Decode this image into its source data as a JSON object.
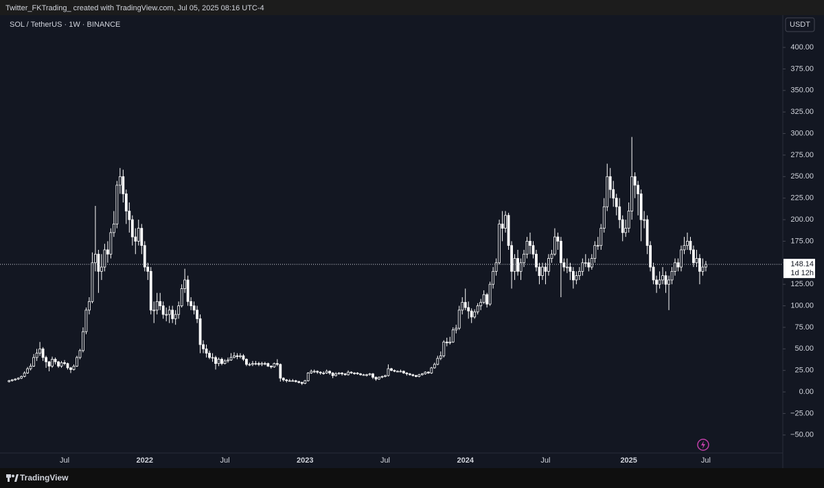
{
  "chart_data": {
    "type": "candlestick",
    "header": "Twitter_FKTrading_ created with TradingView.com, Jul 05, 2025 08:16 UTC-4",
    "title": "SOL / TetherUS · 1W · BINANCE",
    "currency": "USDT",
    "countdown": "1d 12h",
    "brand": "TradingView",
    "up_color": "#ffffff",
    "down_color": "#ffffff",
    "grid": false,
    "ylim": [
      -88.4,
      435.9
    ],
    "yticks": [
      {
        "value": -50,
        "label": "−50.00"
      },
      {
        "value": -25,
        "label": "−25.00"
      },
      {
        "value": 0,
        "label": "0.00"
      },
      {
        "value": 25,
        "label": "25.00"
      },
      {
        "value": 50,
        "label": "50.00"
      },
      {
        "value": 75,
        "label": "75.00"
      },
      {
        "value": 100,
        "label": "100.00"
      },
      {
        "value": 125,
        "label": "125.00"
      },
      {
        "value": 150,
        "label": "150.00"
      },
      {
        "value": 175,
        "label": "175.00"
      },
      {
        "value": 200,
        "label": "200.00"
      },
      {
        "value": 225,
        "label": "225.00"
      },
      {
        "value": 250,
        "label": "250.00"
      },
      {
        "value": 275,
        "label": "275.00"
      },
      {
        "value": 300,
        "label": "300.00"
      },
      {
        "value": 325,
        "label": "325.00"
      },
      {
        "value": 350,
        "label": "350.00"
      },
      {
        "value": 375,
        "label": "375.00"
      },
      {
        "value": 400,
        "label": "400.00"
      }
    ],
    "categories": [
      null,
      null,
      null,
      null,
      null,
      null,
      null,
      null,
      null,
      null,
      null,
      null,
      null,
      null,
      null,
      null,
      null,
      null,
      "Jul",
      null,
      null,
      null,
      null,
      null,
      null,
      null,
      null,
      null,
      null,
      null,
      null,
      null,
      null,
      null,
      null,
      null,
      null,
      null,
      null,
      null,
      null,
      null,
      null,
      null,
      "2022",
      null,
      null,
      null,
      null,
      null,
      null,
      null,
      null,
      null,
      null,
      null,
      null,
      null,
      null,
      null,
      null,
      null,
      null,
      null,
      null,
      null,
      null,
      null,
      null,
      null,
      "Jul",
      null,
      null,
      null,
      null,
      null,
      null,
      null,
      null,
      null,
      null,
      null,
      null,
      null,
      null,
      null,
      null,
      null,
      null,
      null,
      null,
      null,
      null,
      null,
      null,
      null,
      "2023",
      null,
      null,
      null,
      null,
      null,
      null,
      null,
      null,
      null,
      null,
      null,
      null,
      null,
      null,
      null,
      null,
      null,
      null,
      null,
      null,
      null,
      null,
      null,
      null,
      null,
      "Jul",
      null,
      null,
      null,
      null,
      null,
      null,
      null,
      null,
      null,
      null,
      null,
      null,
      null,
      null,
      null,
      null,
      null,
      null,
      null,
      null,
      null,
      null,
      null,
      null,
      null,
      "2024",
      null,
      null,
      null,
      null,
      null,
      null,
      null,
      null,
      null,
      null,
      null,
      null,
      null,
      null,
      null,
      null,
      null,
      null,
      null,
      null,
      null,
      null,
      null,
      null,
      null,
      "Jul",
      null,
      null,
      null,
      null,
      null,
      null,
      null,
      null,
      null,
      null,
      null,
      null,
      null,
      null,
      null,
      null,
      null,
      null,
      null,
      null,
      null,
      null,
      null,
      null,
      null,
      null,
      "2025",
      null,
      null,
      null,
      null,
      null,
      null,
      null,
      null,
      null,
      null,
      null,
      null,
      null,
      null,
      null,
      null,
      null,
      null,
      null,
      null,
      null,
      null,
      null,
      null,
      "Jul"
    ],
    "open": [
      12,
      13,
      14,
      15,
      16,
      18,
      22,
      27,
      30,
      40,
      45,
      50,
      40,
      35,
      30,
      38,
      35,
      30,
      34,
      33,
      28,
      26,
      30,
      40,
      48,
      70,
      95,
      105,
      150,
      160,
      140,
      145,
      165,
      160,
      185,
      195,
      240,
      250,
      230,
      210,
      200,
      180,
      175,
      190,
      170,
      145,
      140,
      95,
      95,
      105,
      100,
      90,
      90,
      95,
      85,
      90,
      100,
      120,
      130,
      105,
      100,
      95,
      85,
      55,
      50,
      45,
      40,
      40,
      33,
      38,
      33,
      36,
      37,
      40,
      42,
      41,
      42,
      38,
      32,
      32,
      33,
      33,
      32,
      33,
      33,
      30,
      29,
      33,
      32,
      16,
      14,
      13,
      13,
      13,
      12,
      11,
      10,
      13,
      22,
      24,
      24,
      23,
      22,
      22,
      24,
      22,
      19,
      21,
      22,
      21,
      20,
      23,
      22,
      22,
      21,
      20,
      20,
      20,
      21,
      17,
      15,
      17,
      18,
      19,
      27,
      25,
      24,
      24,
      24,
      22,
      21,
      20,
      19,
      18,
      20,
      21,
      23,
      22,
      28,
      32,
      39,
      42,
      58,
      57,
      58,
      72,
      74,
      95,
      104,
      98,
      94,
      87,
      93,
      100,
      104,
      113,
      102,
      125,
      140,
      150,
      195,
      190,
      205,
      170,
      140,
      155,
      140,
      150,
      160,
      175,
      170,
      160,
      145,
      135,
      145,
      140,
      155,
      160,
      180,
      175,
      150,
      145,
      145,
      140,
      130,
      135,
      140,
      150,
      150,
      145,
      155,
      170,
      170,
      190,
      215,
      250,
      235,
      225,
      215,
      200,
      185,
      190,
      210,
      250,
      240,
      230,
      200,
      200,
      170,
      145,
      130,
      125,
      130,
      135,
      125,
      130,
      140,
      150,
      145,
      165,
      170,
      175,
      165,
      150,
      155,
      140,
      145
    ],
    "high": [
      14,
      15,
      16,
      17,
      19,
      24,
      29,
      33,
      44,
      50,
      58,
      52,
      42,
      36,
      41,
      40,
      36,
      36,
      37,
      34,
      29,
      32,
      42,
      50,
      75,
      98,
      110,
      162,
      216,
      165,
      160,
      172,
      175,
      190,
      210,
      245,
      260,
      258,
      235,
      220,
      205,
      190,
      200,
      195,
      175,
      150,
      145,
      105,
      115,
      115,
      105,
      98,
      100,
      100,
      95,
      105,
      125,
      143,
      135,
      110,
      105,
      100,
      90,
      60,
      55,
      48,
      45,
      42,
      40,
      40,
      38,
      40,
      45,
      46,
      45,
      45,
      44,
      39,
      34,
      36,
      36,
      35,
      35,
      35,
      34,
      31,
      34,
      38,
      33,
      17,
      15,
      15,
      15,
      14,
      13,
      12,
      14,
      23,
      26,
      26,
      25,
      24,
      24,
      26,
      25,
      23,
      23,
      23,
      23,
      22,
      25,
      24,
      23,
      23,
      22,
      21,
      21,
      22,
      22,
      18,
      18,
      19,
      20,
      32,
      28,
      26,
      25,
      26,
      25,
      23,
      22,
      21,
      20,
      21,
      22,
      24,
      24,
      29,
      34,
      42,
      47,
      60,
      63,
      64,
      75,
      78,
      100,
      110,
      120,
      105,
      97,
      96,
      103,
      108,
      118,
      115,
      128,
      145,
      155,
      200,
      210,
      210,
      208,
      175,
      160,
      165,
      155,
      165,
      180,
      185,
      175,
      165,
      150,
      150,
      150,
      160,
      165,
      190,
      185,
      180,
      155,
      155,
      150,
      145,
      140,
      145,
      155,
      160,
      155,
      160,
      175,
      180,
      195,
      225,
      265,
      260,
      245,
      230,
      225,
      205,
      200,
      220,
      296,
      255,
      245,
      235,
      210,
      205,
      175,
      150,
      135,
      140,
      145,
      140,
      135,
      145,
      155,
      155,
      170,
      180,
      185,
      180,
      170,
      165,
      160,
      155,
      152
    ],
    "low": [
      11,
      12,
      13,
      14,
      15,
      17,
      21,
      25,
      29,
      36,
      42,
      36,
      28,
      24,
      28,
      32,
      28,
      28,
      31,
      26,
      22,
      25,
      29,
      38,
      46,
      67,
      90,
      103,
      140,
      115,
      130,
      140,
      150,
      155,
      180,
      190,
      230,
      220,
      195,
      185,
      170,
      160,
      170,
      160,
      140,
      130,
      90,
      80,
      90,
      95,
      85,
      82,
      80,
      80,
      78,
      85,
      98,
      115,
      100,
      95,
      90,
      80,
      45,
      45,
      40,
      38,
      35,
      26,
      30,
      31,
      32,
      34,
      36,
      39,
      38,
      39,
      36,
      30,
      30,
      30,
      31,
      30,
      30,
      31,
      29,
      27,
      28,
      30,
      12,
      12,
      11,
      12,
      12,
      11,
      10,
      8,
      9,
      12,
      21,
      22,
      21,
      20,
      20,
      21,
      20,
      16,
      18,
      20,
      19,
      19,
      19,
      21,
      20,
      20,
      19,
      19,
      18,
      19,
      15,
      13,
      14,
      16,
      17,
      18,
      24,
      23,
      23,
      23,
      21,
      19,
      19,
      18,
      17,
      17,
      19,
      20,
      21,
      21,
      27,
      31,
      37,
      40,
      53,
      55,
      57,
      68,
      72,
      90,
      95,
      85,
      80,
      85,
      90,
      95,
      102,
      98,
      100,
      120,
      135,
      148,
      175,
      185,
      165,
      120,
      130,
      135,
      130,
      145,
      155,
      160,
      155,
      140,
      125,
      130,
      125,
      135,
      150,
      158,
      165,
      110,
      140,
      138,
      130,
      120,
      125,
      130,
      135,
      145,
      140,
      142,
      150,
      165,
      165,
      185,
      210,
      225,
      215,
      205,
      190,
      175,
      180,
      185,
      200,
      225,
      205,
      175,
      190,
      160,
      140,
      125,
      115,
      120,
      125,
      115,
      95,
      125,
      135,
      140,
      140,
      160,
      165,
      160,
      145,
      145,
      125,
      135,
      140
    ],
    "close": [
      13,
      14,
      15,
      16,
      18,
      22,
      27,
      30,
      40,
      45,
      50,
      40,
      35,
      30,
      38,
      35,
      30,
      34,
      33,
      28,
      26,
      30,
      40,
      48,
      70,
      95,
      105,
      150,
      160,
      140,
      145,
      165,
      160,
      185,
      195,
      240,
      250,
      230,
      210,
      200,
      180,
      175,
      190,
      170,
      145,
      140,
      95,
      95,
      105,
      100,
      90,
      90,
      95,
      85,
      90,
      100,
      120,
      130,
      105,
      100,
      95,
      85,
      55,
      50,
      45,
      40,
      40,
      33,
      38,
      33,
      36,
      37,
      40,
      42,
      41,
      42,
      38,
      32,
      32,
      33,
      33,
      32,
      33,
      33,
      30,
      29,
      33,
      32,
      16,
      14,
      13,
      13,
      13,
      12,
      11,
      10,
      13,
      22,
      24,
      24,
      23,
      22,
      22,
      24,
      22,
      19,
      21,
      22,
      21,
      20,
      23,
      22,
      22,
      21,
      20,
      20,
      20,
      21,
      17,
      15,
      17,
      18,
      19,
      27,
      25,
      24,
      24,
      24,
      22,
      21,
      20,
      19,
      18,
      20,
      21,
      23,
      22,
      28,
      32,
      39,
      42,
      58,
      57,
      58,
      72,
      74,
      95,
      104,
      98,
      94,
      87,
      93,
      100,
      104,
      113,
      102,
      125,
      140,
      150,
      195,
      190,
      205,
      170,
      140,
      155,
      140,
      150,
      160,
      175,
      170,
      160,
      145,
      135,
      145,
      140,
      155,
      160,
      180,
      175,
      150,
      145,
      145,
      140,
      130,
      135,
      140,
      150,
      150,
      145,
      155,
      170,
      170,
      190,
      215,
      250,
      235,
      225,
      215,
      200,
      185,
      190,
      210,
      250,
      240,
      230,
      200,
      200,
      170,
      145,
      130,
      125,
      130,
      135,
      125,
      130,
      140,
      150,
      145,
      165,
      170,
      175,
      165,
      150,
      155,
      140,
      145,
      148.14
    ]
  }
}
